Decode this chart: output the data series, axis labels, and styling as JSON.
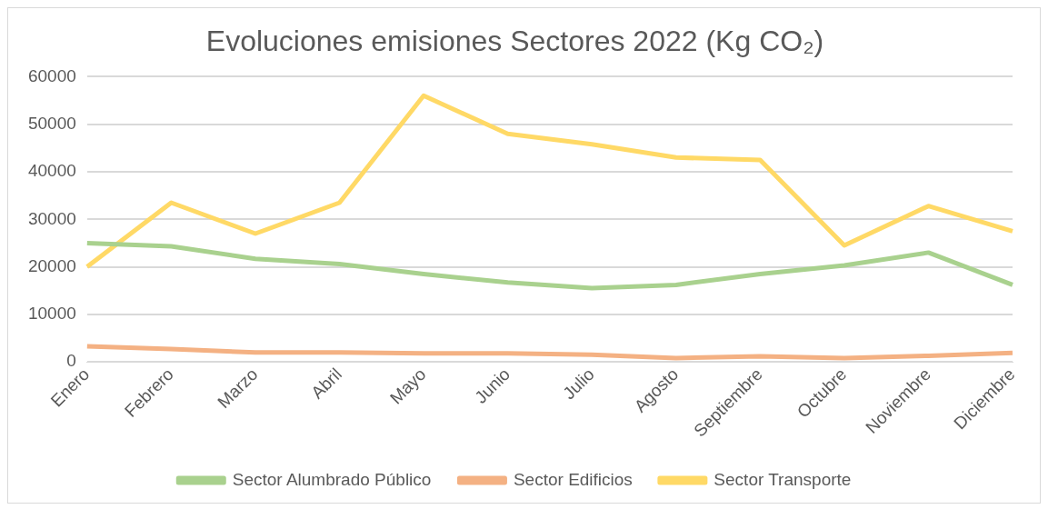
{
  "chart_data": {
    "type": "line",
    "title": "Evoluciones emisiones Sectores 2022 (Kg CO₂)",
    "categories": [
      "Enero",
      "Febrero",
      "Marzo",
      "Abril",
      "Mayo",
      "Junio",
      "Julio",
      "Agosto",
      "Septiembre",
      "Octubre",
      "Noviembre",
      "Diciembre"
    ],
    "series": [
      {
        "name": "Sector Alumbrado Público",
        "color": "#a9d18e",
        "values": [
          25000,
          24300,
          21700,
          20600,
          18500,
          16700,
          15500,
          16200,
          18500,
          20300,
          23000,
          16200
        ]
      },
      {
        "name": "Sector Edificios",
        "color": "#f4b183",
        "values": [
          3300,
          2700,
          2000,
          2000,
          1800,
          1800,
          1500,
          800,
          1200,
          800,
          1300,
          1900
        ]
      },
      {
        "name": "Sector Transporte",
        "color": "#ffd966",
        "values": [
          20000,
          33500,
          27000,
          33500,
          56000,
          48000,
          45800,
          43000,
          42500,
          24500,
          32800,
          27500
        ]
      }
    ],
    "ylim": [
      0,
      60000
    ],
    "yticks": [
      0,
      10000,
      20000,
      30000,
      40000,
      50000,
      60000
    ],
    "grid": "y",
    "legend": "bottom",
    "marker": "none",
    "line_style": "solid"
  }
}
